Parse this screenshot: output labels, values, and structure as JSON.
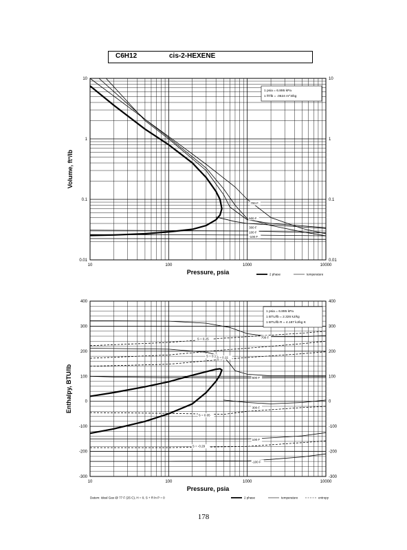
{
  "header": {
    "formula": "C6H12",
    "compound": "cis-2-HEXENE"
  },
  "page_number": "178",
  "chart_data": [
    {
      "type": "line",
      "xscale": "log",
      "yscale": "log",
      "xlim": [
        10,
        10000
      ],
      "ylim": [
        0.01,
        10
      ],
      "xlabel": "Pressure,  psia",
      "ylabel": "Volume, ft^3/lb",
      "x_tick_labels": [
        "10",
        "100",
        "1000",
        "10000"
      ],
      "y_tick_labels": [
        "0.01",
        "0.1",
        "1",
        "10"
      ],
      "conversion_notes": [
        "1 psia  =  6.895 kPa",
        "1 ft^3/lb  =  .0624 m^3/kg"
      ],
      "legend": [
        "2 phase",
        "temperature"
      ],
      "series": [
        {
          "name": "2 phase",
          "style": "thick",
          "x": [
            10,
            20,
            50,
            100,
            200,
            300,
            400,
            450,
            475,
            450,
            400,
            300,
            200,
            100,
            50,
            20,
            10
          ],
          "y": [
            7.5,
            3.6,
            1.45,
            0.8,
            0.4,
            0.23,
            0.135,
            0.1,
            0.07,
            0.055,
            0.046,
            0.037,
            0.032,
            0.029,
            0.027,
            0.0258,
            0.0253
          ]
        },
        {
          "name": "700 F",
          "style": "thin",
          "x": [
            10,
            50,
            100,
            300,
            700,
            1000,
            2000,
            5000,
            10000
          ],
          "y": [
            10,
            2.1,
            1.1,
            0.38,
            0.16,
            0.1,
            0.05,
            0.033,
            0.027
          ]
        },
        {
          "name": "",
          "style": "thin",
          "x": [
            13,
            50,
            100,
            300,
            500,
            700,
            1000,
            2000,
            5000,
            10000
          ],
          "y": [
            10,
            2.1,
            1.05,
            0.33,
            0.15,
            0.08,
            0.048,
            0.037,
            0.029,
            0.025
          ]
        },
        {
          "name": "",
          "style": "thin",
          "x": [
            16,
            50,
            100,
            300,
            500,
            600,
            1000,
            2000,
            10000
          ],
          "y": [
            10,
            2.0,
            1.0,
            0.3,
            0.12,
            0.075,
            0.046,
            0.04,
            0.034
          ]
        },
        {
          "name": "500 F",
          "style": "thin",
          "x": [
            400,
            700,
            1000,
            10000
          ],
          "y": [
            0.051,
            0.043,
            0.04,
            0.033
          ]
        },
        {
          "name": "300 F",
          "style": "thin",
          "x": [
            10,
            100,
            1000,
            10000
          ],
          "y": [
            0.031,
            0.0305,
            0.03,
            0.028
          ]
        },
        {
          "name": "100 F",
          "style": "thin",
          "x": [
            10,
            100,
            1000,
            10000
          ],
          "y": [
            0.0262,
            0.026,
            0.0257,
            0.025
          ]
        },
        {
          "name": "-100 F",
          "style": "thin",
          "x": [
            10,
            100,
            1000,
            10000
          ],
          "y": [
            0.0225,
            0.0224,
            0.0222,
            0.0218
          ]
        }
      ]
    },
    {
      "type": "line",
      "xscale": "log",
      "yscale": "linear",
      "xlim": [
        10,
        10000
      ],
      "ylim": [
        -300,
        400
      ],
      "xlabel": "Pressure,  psia",
      "ylabel": "Enthalpy, BTU/lb",
      "x_tick_labels": [
        "10",
        "100",
        "1000",
        "10000"
      ],
      "y_tick_labels": [
        "400",
        "300",
        "200",
        "100",
        "0",
        "-100",
        "-200",
        "-300"
      ],
      "conversion_notes": [
        "1 psia  =  6.895 kPa",
        "1 BTU/lb  =  2.326 kJ/kg",
        "1 BTU/lb R  =  4.187 kJ/kg K"
      ],
      "footnote": "Datum: Ideal Gas @ 77 F (25 C),  H = 0,  S + R ln P = 0",
      "legend": [
        "2 phase",
        "temperature",
        "entropy"
      ],
      "series": [
        {
          "name": "2 phase",
          "style": "thick",
          "x": [
            10,
            20,
            50,
            100,
            200,
            300,
            400,
            450,
            475,
            450,
            400,
            300,
            200,
            100,
            50,
            20,
            10
          ],
          "y": [
            20,
            35,
            58,
            78,
            104,
            118,
            128,
            130,
            125,
            105,
            80,
            35,
            -10,
            -50,
            -80,
            -110,
            -128
          ]
        },
        {
          "name": "700 F",
          "style": "thin",
          "x": [
            10,
            100,
            300,
            600,
            1000,
            2000,
            5000,
            10000
          ],
          "y": [
            322,
            320,
            312,
            295,
            270,
            258,
            258,
            262
          ]
        },
        {
          "name": "500 F",
          "style": "thin",
          "x": [
            10,
            100,
            300,
            500,
            600,
            700,
            1000,
            2000,
            10000
          ],
          "y": [
            212,
            208,
            196,
            178,
            150,
            122,
            108,
            102,
            102
          ]
        },
        {
          "name": "",
          "style": "thin",
          "x": [
            10,
            20,
            100,
            500,
            1000,
            10000
          ],
          "y": [
            100,
            97,
            94,
            93,
            93,
            95
          ]
        },
        {
          "name": "300 F",
          "style": "thin",
          "x": [
            500,
            1000,
            2000,
            5000,
            10000
          ],
          "y": [
            5,
            -5,
            -10,
            -5,
            5
          ]
        },
        {
          "name": "100 F",
          "style": "thin",
          "x": [
            10,
            100,
            1000,
            2000,
            5000,
            10000
          ],
          "y": [
            -150,
            -150,
            -150,
            -146,
            -138,
            -125
          ]
        },
        {
          "name": "-100 F",
          "style": "thin",
          "x": [
            10,
            100,
            1000,
            2000,
            5000,
            10000
          ],
          "y": [
            -240,
            -240,
            -238,
            -232,
            -222,
            -210
          ]
        },
        {
          "name": "S = 0.25",
          "style": "dashed",
          "x": [
            10,
            100,
            500,
            1000,
            5000,
            10000
          ],
          "y": [
            222,
            235,
            252,
            258,
            272,
            280
          ]
        },
        {
          "name": "S = 0.16",
          "style": "dashed",
          "x": [
            10,
            100,
            500,
            1000,
            5000,
            10000
          ],
          "y": [
            172,
            185,
            205,
            212,
            230,
            240
          ]
        },
        {
          "name": "S = 0.11",
          "style": "dashed",
          "x": [
            10,
            100,
            400,
            1000,
            5000,
            10000
          ],
          "y": [
            140,
            148,
            165,
            175,
            190,
            198
          ]
        },
        {
          "name": "S = 0.05",
          "style": "dashed",
          "x": [
            10,
            100,
            500,
            1000,
            5000,
            10000
          ],
          "y": [
            -45,
            -48,
            -52,
            -40,
            -25,
            -20
          ]
        },
        {
          "name": "S = -0.29",
          "style": "dashed",
          "x": [
            10,
            100,
            1000,
            5000,
            10000
          ],
          "y": [
            -185,
            -185,
            -180,
            -165,
            -158
          ]
        }
      ]
    }
  ]
}
